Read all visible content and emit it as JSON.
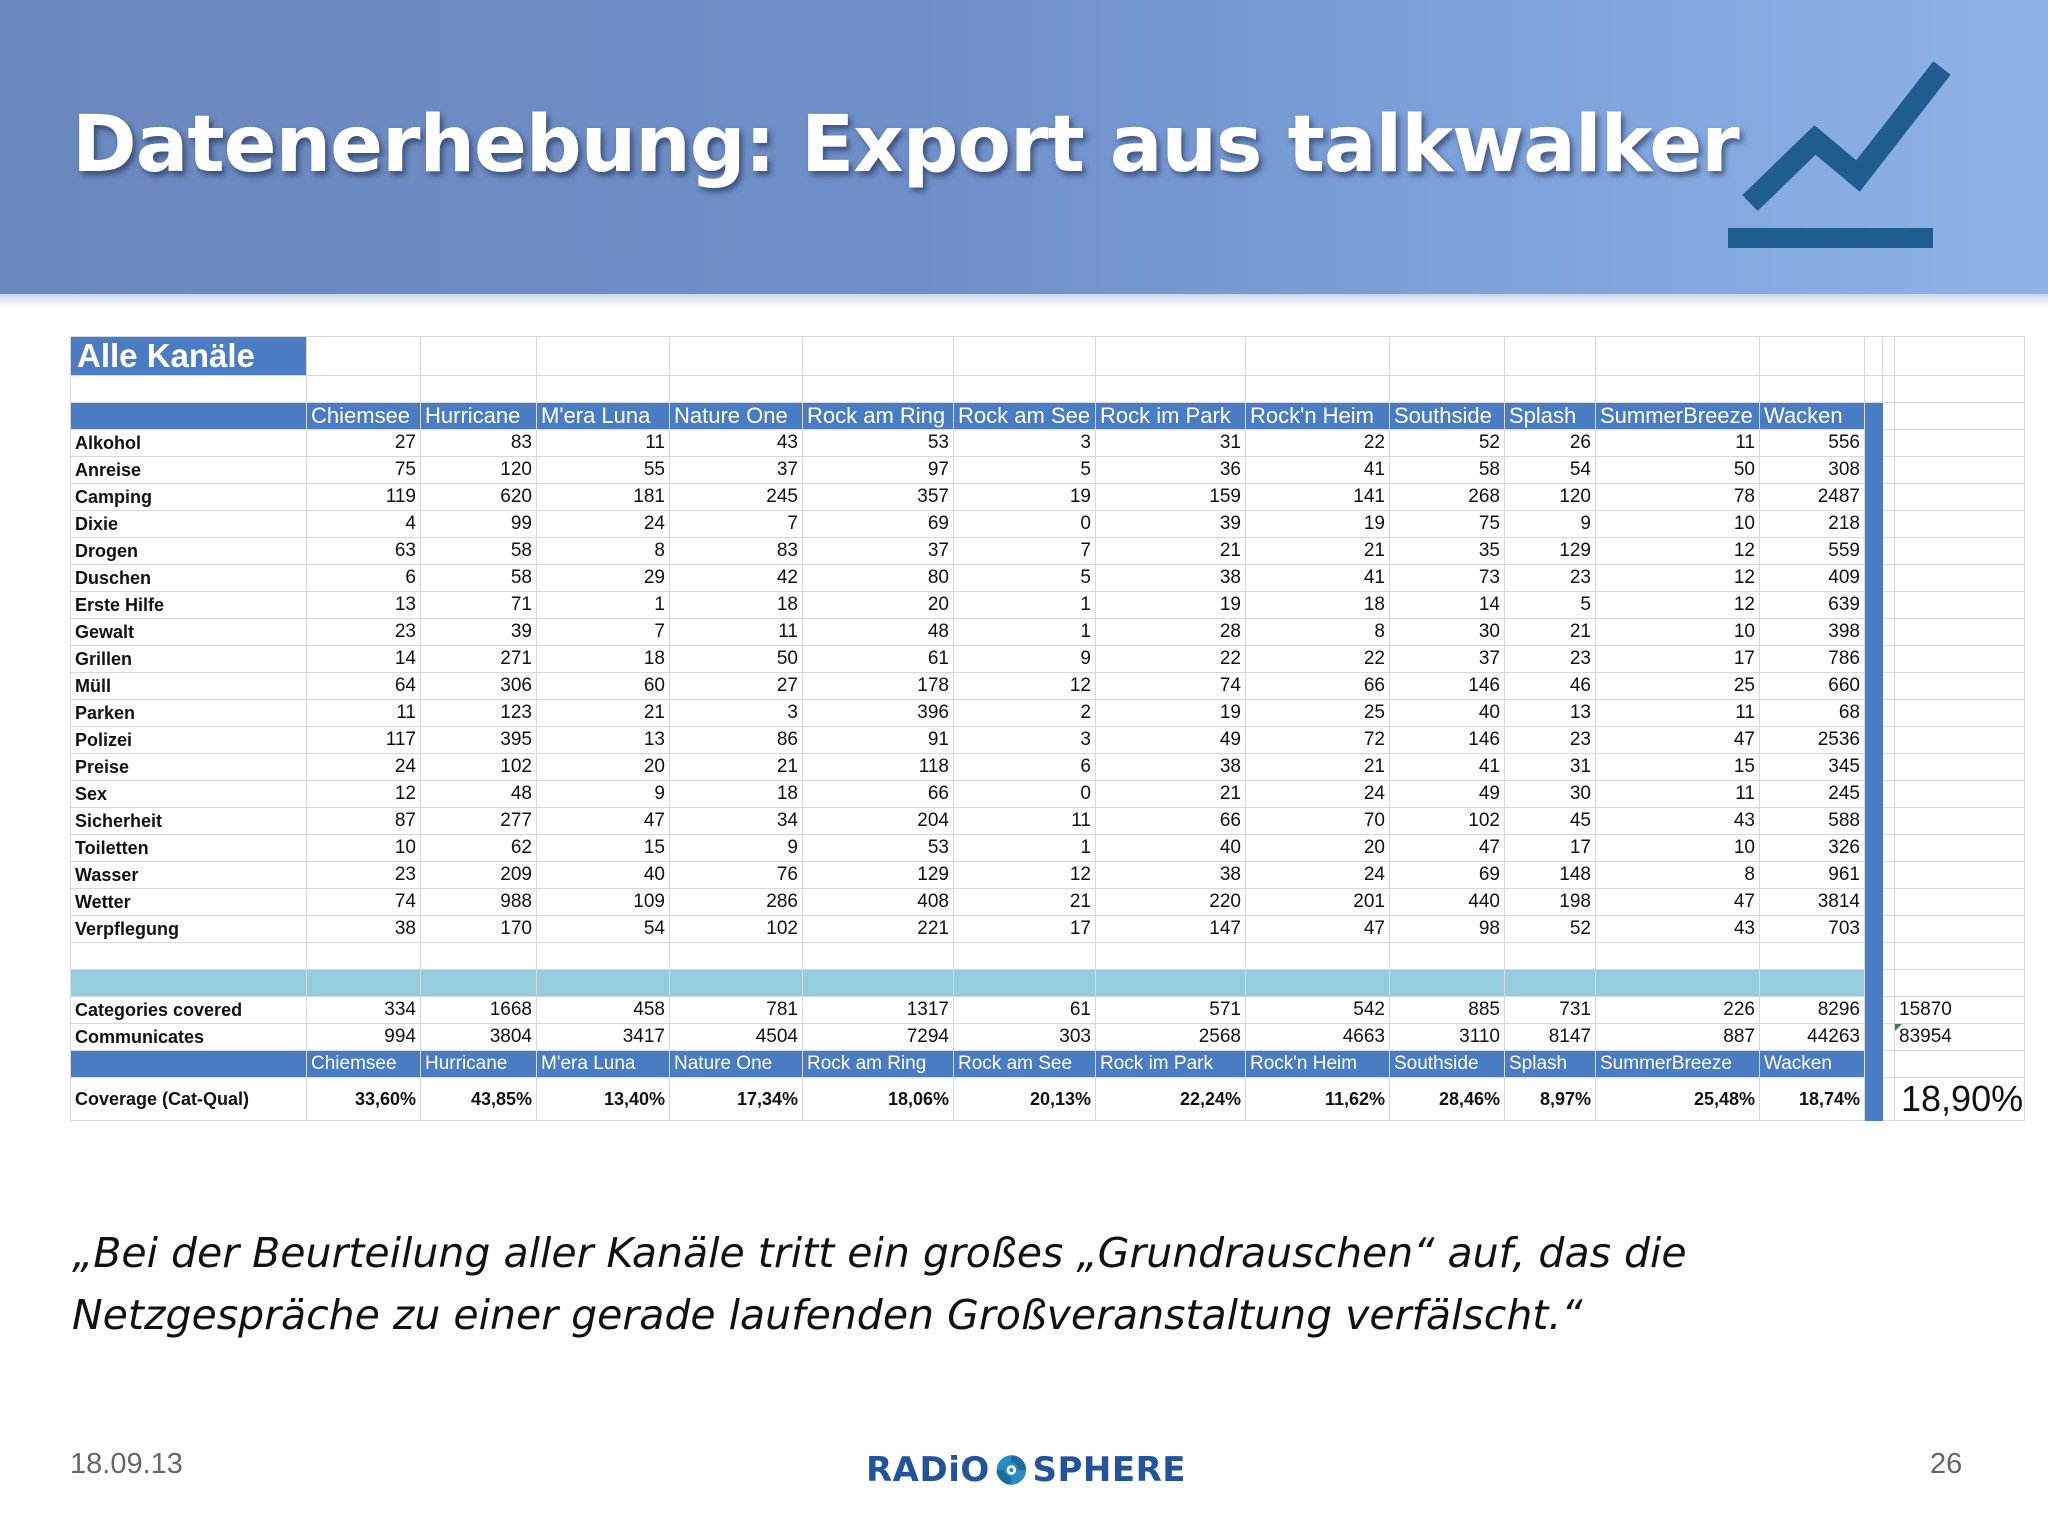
{
  "slide": {
    "title": "Datenerhebung: Export aus talkwalker",
    "quote_line1": "„Bei der Beurteilung aller Kanäle tritt ein großes „Grundrauschen“ auf, das die",
    "quote_line2": "Netzgespräche zu einer gerade laufenden Großveranstaltung verfälscht.“",
    "date": "18.09.13",
    "page_number": "26",
    "logo_left": "RADiO",
    "logo_right": "SPHERE",
    "icon": "trend-line-chart-icon",
    "colors": {
      "header": "#6f8fc9",
      "table_header": "#4a7cc4",
      "teal_row": "#96cdde",
      "logo": "#23539a"
    }
  },
  "table": {
    "title": "Alle Kanäle",
    "columns": [
      "Chiemsee",
      "Hurricane",
      "M'era Luna",
      "Nature One",
      "Rock am Ring",
      "Rock am See",
      "Rock im Park",
      "Rock'n Heim",
      "Southside",
      "Splash",
      "SummerBreeze",
      "Wacken"
    ],
    "rows": [
      {
        "label": "Alkohol",
        "values": [
          "27",
          "83",
          "11",
          "43",
          "53",
          "3",
          "31",
          "22",
          "52",
          "26",
          "11",
          "556"
        ]
      },
      {
        "label": "Anreise",
        "values": [
          "75",
          "120",
          "55",
          "37",
          "97",
          "5",
          "36",
          "41",
          "58",
          "54",
          "50",
          "308"
        ]
      },
      {
        "label": "Camping",
        "values": [
          "119",
          "620",
          "181",
          "245",
          "357",
          "19",
          "159",
          "141",
          "268",
          "120",
          "78",
          "2487"
        ]
      },
      {
        "label": "Dixie",
        "values": [
          "4",
          "99",
          "24",
          "7",
          "69",
          "0",
          "39",
          "19",
          "75",
          "9",
          "10",
          "218"
        ]
      },
      {
        "label": "Drogen",
        "values": [
          "63",
          "58",
          "8",
          "83",
          "37",
          "7",
          "21",
          "21",
          "35",
          "129",
          "12",
          "559"
        ]
      },
      {
        "label": "Duschen",
        "values": [
          "6",
          "58",
          "29",
          "42",
          "80",
          "5",
          "38",
          "41",
          "73",
          "23",
          "12",
          "409"
        ]
      },
      {
        "label": "Erste Hilfe",
        "values": [
          "13",
          "71",
          "1",
          "18",
          "20",
          "1",
          "19",
          "18",
          "14",
          "5",
          "12",
          "639"
        ]
      },
      {
        "label": "Gewalt",
        "values": [
          "23",
          "39",
          "7",
          "11",
          "48",
          "1",
          "28",
          "8",
          "30",
          "21",
          "10",
          "398"
        ]
      },
      {
        "label": "Grillen",
        "values": [
          "14",
          "271",
          "18",
          "50",
          "61",
          "9",
          "22",
          "22",
          "37",
          "23",
          "17",
          "786"
        ]
      },
      {
        "label": "Müll",
        "values": [
          "64",
          "306",
          "60",
          "27",
          "178",
          "12",
          "74",
          "66",
          "146",
          "46",
          "25",
          "660"
        ]
      },
      {
        "label": "Parken",
        "values": [
          "11",
          "123",
          "21",
          "3",
          "396",
          "2",
          "19",
          "25",
          "40",
          "13",
          "11",
          "68"
        ]
      },
      {
        "label": "Polizei",
        "values": [
          "117",
          "395",
          "13",
          "86",
          "91",
          "3",
          "49",
          "72",
          "146",
          "23",
          "47",
          "2536"
        ]
      },
      {
        "label": "Preise",
        "values": [
          "24",
          "102",
          "20",
          "21",
          "118",
          "6",
          "38",
          "21",
          "41",
          "31",
          "15",
          "345"
        ]
      },
      {
        "label": "Sex",
        "values": [
          "12",
          "48",
          "9",
          "18",
          "66",
          "0",
          "21",
          "24",
          "49",
          "30",
          "11",
          "245"
        ]
      },
      {
        "label": "Sicherheit",
        "values": [
          "87",
          "277",
          "47",
          "34",
          "204",
          "11",
          "66",
          "70",
          "102",
          "45",
          "43",
          "588"
        ]
      },
      {
        "label": "Toiletten",
        "values": [
          "10",
          "62",
          "15",
          "9",
          "53",
          "1",
          "40",
          "20",
          "47",
          "17",
          "10",
          "326"
        ]
      },
      {
        "label": "Wasser",
        "values": [
          "23",
          "209",
          "40",
          "76",
          "129",
          "12",
          "38",
          "24",
          "69",
          "148",
          "8",
          "961"
        ]
      },
      {
        "label": "Wetter",
        "values": [
          "74",
          "988",
          "109",
          "286",
          "408",
          "21",
          "220",
          "201",
          "440",
          "198",
          "47",
          "3814"
        ]
      },
      {
        "label": "Verpflegung",
        "values": [
          "38",
          "170",
          "54",
          "102",
          "221",
          "17",
          "147",
          "47",
          "98",
          "52",
          "43",
          "703"
        ]
      }
    ],
    "categories_covered": {
      "label": "Categories covered",
      "values": [
        "334",
        "1668",
        "458",
        "781",
        "1317",
        "61",
        "571",
        "542",
        "885",
        "731",
        "226",
        "8296"
      ],
      "total": "15870"
    },
    "communicates": {
      "label": "Communicates",
      "values": [
        "994",
        "3804",
        "3417",
        "4504",
        "7294",
        "303",
        "2568",
        "4663",
        "3110",
        "8147",
        "887",
        "44263"
      ],
      "total": "83954"
    },
    "coverage": {
      "label": "Coverage (Cat-Qual)",
      "values": [
        "33,60%",
        "43,85%",
        "13,40%",
        "17,34%",
        "18,06%",
        "20,13%",
        "22,24%",
        "11,62%",
        "28,46%",
        "8,97%",
        "25,48%",
        "18,74%"
      ],
      "total": "18,90%"
    }
  }
}
